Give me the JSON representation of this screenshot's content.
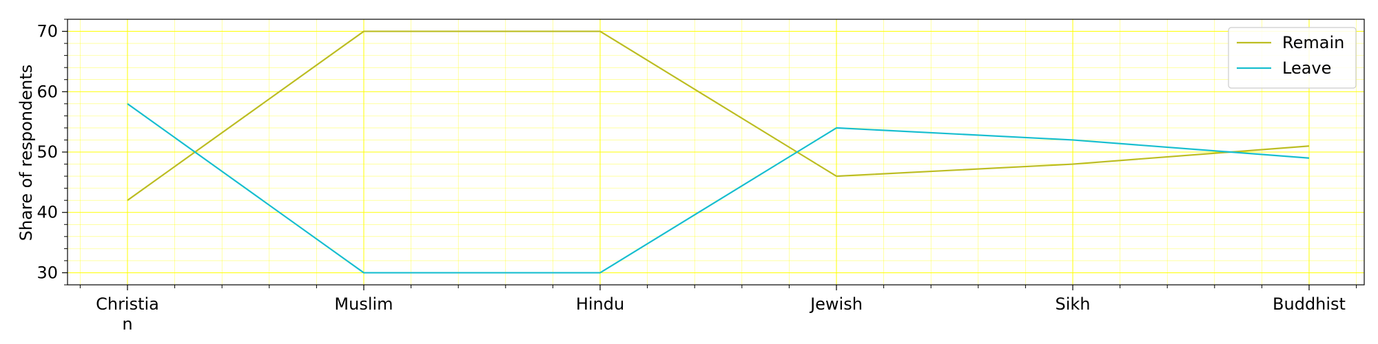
{
  "chart_data": {
    "type": "line",
    "categories": [
      [
        "Christia",
        "n"
      ],
      [
        "Muslim"
      ],
      [
        "Hindu"
      ],
      [
        "Jewish"
      ],
      [
        "Sikh"
      ],
      [
        "Buddhist"
      ]
    ],
    "series": [
      {
        "name": "Remain",
        "color": "#bcbd22",
        "values": [
          42,
          70,
          70,
          46,
          48,
          51
        ]
      },
      {
        "name": "Leave",
        "color": "#17becf",
        "values": [
          58,
          30,
          30,
          54,
          52,
          49
        ]
      }
    ],
    "ylabel": "Share of respondents",
    "ylim": [
      28,
      72
    ],
    "yticks": [
      30,
      40,
      50,
      60,
      70
    ],
    "grid": true,
    "grid_color": "#ffff00",
    "legend": "top-right"
  }
}
